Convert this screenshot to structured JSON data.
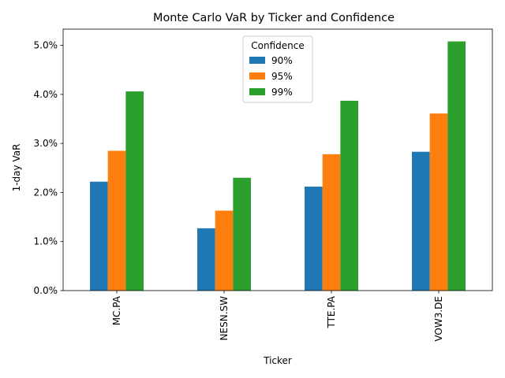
{
  "chart_data": {
    "type": "bar",
    "title": "Monte Carlo VaR by Ticker and Confidence",
    "xlabel": "Ticker",
    "ylabel": "1-day VaR",
    "categories": [
      "MC.PA",
      "NESN.SW",
      "TTE.PA",
      "VOW3.DE"
    ],
    "series": [
      {
        "name": "90%",
        "color": "#1f77b4",
        "values": [
          0.0222,
          0.0127,
          0.0212,
          0.0283
        ]
      },
      {
        "name": "95%",
        "color": "#ff7f0e",
        "values": [
          0.0285,
          0.0163,
          0.0278,
          0.0361
        ]
      },
      {
        "name": "99%",
        "color": "#2ca02c",
        "values": [
          0.0406,
          0.023,
          0.0387,
          0.0508
        ]
      }
    ],
    "ylim": [
      0,
      0.0533
    ],
    "yticks": [
      0,
      0.01,
      0.02,
      0.03,
      0.04,
      0.05
    ],
    "ytick_labels": [
      "0.0%",
      "1.0%",
      "2.0%",
      "3.0%",
      "4.0%",
      "5.0%"
    ],
    "legend": {
      "title": "Confidence",
      "placement": "upper-center"
    },
    "grid": false
  }
}
